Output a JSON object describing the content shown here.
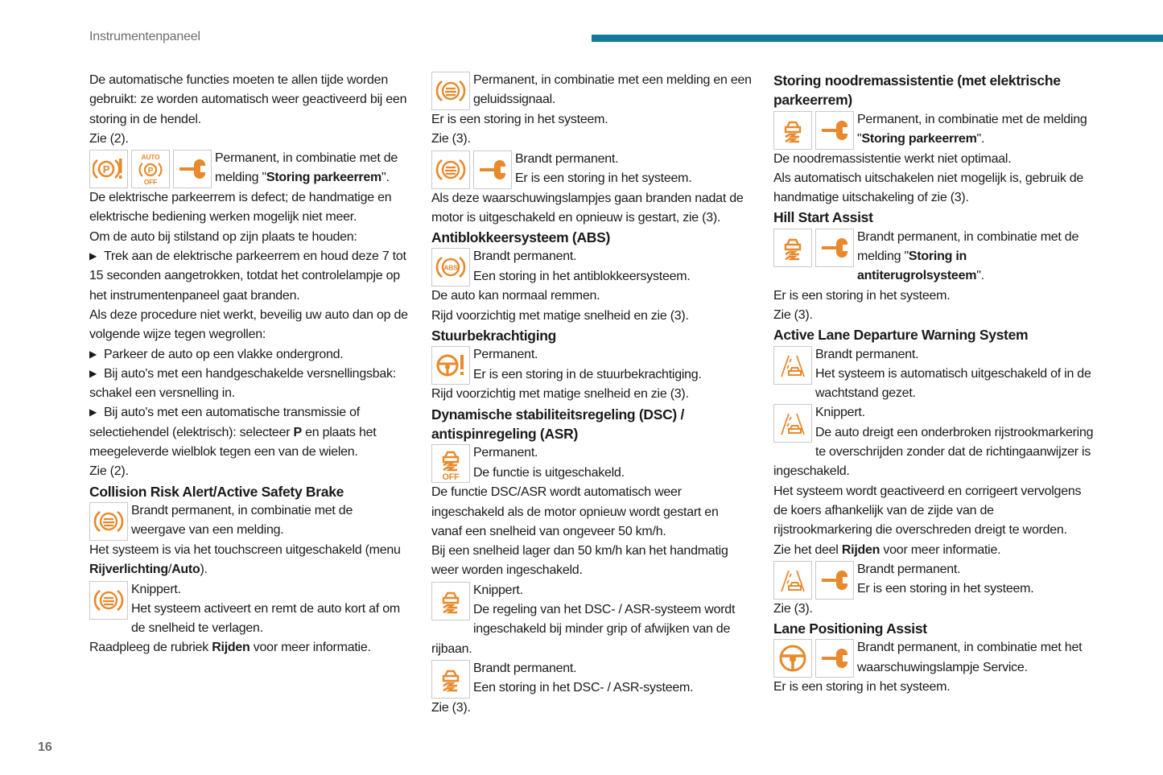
{
  "header": {
    "title": "Instrumentenpaneel",
    "accent_color": "#147a9c",
    "page_number": "16"
  },
  "icon_color": "#e8892b",
  "columns": [
    [
      {
        "type": "p",
        "runs": [
          "De automatische functies moeten te allen tijde worden gebruikt: ze worden automatisch weer geactiveerd bij een storing in de hendel."
        ]
      },
      {
        "type": "p",
        "runs": [
          "Zie (2)."
        ]
      },
      {
        "type": "icons",
        "icons": [
          "parking-brake-warning-icon",
          "auto-parking-off-icon",
          "wrench-icon"
        ],
        "lines": [
          [
            "Permanent, in combinatie met de melding \"",
            {
              "b": "Storing parkeerrem"
            },
            "\"."
          ]
        ]
      },
      {
        "type": "p",
        "runs": [
          "De elektrische parkeerrem is defect; de handmatige en elektrische bediening werken mogelijk niet meer."
        ]
      },
      {
        "type": "p",
        "runs": [
          "Om de auto bij stilstand op zijn plaats te houden:"
        ]
      },
      {
        "type": "bullet",
        "runs": [
          "Trek aan de elektrische parkeerrem en houd deze 7 tot 15 seconden aangetrokken, totdat het controlelampje op het instrumentenpaneel gaat branden."
        ]
      },
      {
        "type": "p",
        "runs": [
          "Als deze procedure niet werkt, beveilig uw auto dan op de volgende wijze tegen wegrollen:"
        ]
      },
      {
        "type": "bullet",
        "runs": [
          "Parkeer de auto op een vlakke ondergrond."
        ]
      },
      {
        "type": "bullet",
        "runs": [
          "Bij auto's met een handgeschakelde versnellingsbak: schakel een versnelling in."
        ]
      },
      {
        "type": "bullet",
        "runs": [
          "Bij auto's met een automatische transmissie of selectiehendel (elektrisch): selecteer ",
          {
            "b": "P"
          },
          " en plaats het meegeleverde wielblok tegen een van de wielen."
        ]
      },
      {
        "type": "p",
        "runs": [
          "Zie (2)."
        ]
      },
      {
        "type": "h",
        "runs": [
          "Collision Risk Alert/Active Safety Brake"
        ]
      },
      {
        "type": "icons",
        "icons": [
          "collision-alert-icon"
        ],
        "lines": [
          [
            "Brandt permanent, in combinatie met de weergave van een melding."
          ]
        ]
      },
      {
        "type": "p",
        "runs": [
          "Het systeem is via het touchscreen uitgeschakeld (menu ",
          {
            "b": "Rijverlichting"
          },
          "/",
          {
            "b": "Auto"
          },
          ")."
        ]
      },
      {
        "type": "icons",
        "icons": [
          "collision-alert-icon"
        ],
        "lines": [
          [
            "Knippert."
          ],
          [
            "Het systeem activeert en remt de auto kort af om de snelheid te verlagen."
          ]
        ]
      },
      {
        "type": "p",
        "runs": [
          "Raadpleeg de rubriek ",
          {
            "b": "Rijden"
          },
          " voor meer informatie."
        ]
      }
    ],
    [
      {
        "type": "icons",
        "icons": [
          "collision-alert-icon"
        ],
        "lines": [
          [
            "Permanent, in combinatie met een melding en een geluidssignaal."
          ]
        ]
      },
      {
        "type": "p",
        "runs": [
          "Er is een storing in het systeem."
        ]
      },
      {
        "type": "p",
        "runs": [
          "Zie (3)."
        ]
      },
      {
        "type": "icons",
        "icons": [
          "collision-alert-icon",
          "wrench-icon"
        ],
        "lines": [
          [
            "Brandt permanent."
          ],
          [
            "Er is een storing in het systeem."
          ]
        ]
      },
      {
        "type": "p",
        "runs": [
          "Als deze waarschuwingslampjes gaan branden nadat de motor is uitgeschakeld en opnieuw is gestart, zie (3)."
        ]
      },
      {
        "type": "h",
        "runs": [
          "Antiblokkeersysteem (ABS)"
        ]
      },
      {
        "type": "icons",
        "icons": [
          "abs-icon"
        ],
        "lines": [
          [
            "Brandt permanent."
          ],
          [
            "Een storing in het antiblokkeersysteem."
          ]
        ]
      },
      {
        "type": "p",
        "runs": [
          "De auto kan normaal remmen."
        ]
      },
      {
        "type": "p",
        "runs": [
          "Rijd voorzichtig met matige snelheid en zie (3)."
        ]
      },
      {
        "type": "h",
        "runs": [
          "Stuurbekrachtiging"
        ]
      },
      {
        "type": "icons",
        "icons": [
          "power-steering-icon"
        ],
        "lines": [
          [
            "Permanent."
          ],
          [
            "Er is een storing in de stuurbekrachtiging."
          ]
        ]
      },
      {
        "type": "p",
        "runs": [
          "Rijd voorzichtig met matige snelheid en zie (3)."
        ]
      },
      {
        "type": "h",
        "runs": [
          "Dynamische stabiliteitsregeling (DSC) / antispinregeling (ASR)"
        ]
      },
      {
        "type": "icons",
        "icons": [
          "dsc-off-icon"
        ],
        "lines": [
          [
            "Permanent."
          ],
          [
            "De functie is uitgeschakeld."
          ]
        ]
      },
      {
        "type": "p",
        "runs": [
          "De functie DSC/ASR wordt automatisch weer ingeschakeld als de motor opnieuw wordt gestart en vanaf een snelheid van ongeveer 50 km/h."
        ]
      },
      {
        "type": "p",
        "runs": [
          "Bij een snelheid lager dan 50 km/h kan het handmatig weer worden ingeschakeld."
        ]
      },
      {
        "type": "icons",
        "icons": [
          "dsc-icon"
        ],
        "lines": [
          [
            "Knippert."
          ],
          [
            "De regeling van het DSC- / ASR-systeem wordt ingeschakeld bij minder grip of afwijken van de rijbaan."
          ]
        ]
      },
      {
        "type": "icons",
        "icons": [
          "dsc-icon"
        ],
        "lines": [
          [
            "Brandt permanent."
          ],
          [
            "Een storing in het DSC- / ASR-systeem."
          ]
        ]
      },
      {
        "type": "p",
        "runs": [
          "Zie (3)."
        ]
      }
    ],
    [
      {
        "type": "h",
        "runs": [
          "Storing noodremassistentie (met elektrische parkeerrem)"
        ]
      },
      {
        "type": "icons",
        "icons": [
          "dsc-icon",
          "wrench-icon"
        ],
        "lines": [
          [
            "Permanent, in combinatie met de melding \"",
            {
              "b": "Storing parkeerrem"
            },
            "\"."
          ]
        ]
      },
      {
        "type": "p",
        "runs": [
          "De noodremassistentie werkt niet optimaal."
        ]
      },
      {
        "type": "p",
        "runs": [
          "Als automatisch uitschakelen niet mogelijk is, gebruik de handmatige uitschakeling of zie (3)."
        ]
      },
      {
        "type": "h",
        "runs": [
          "Hill Start Assist"
        ]
      },
      {
        "type": "icons",
        "icons": [
          "dsc-icon",
          "wrench-icon"
        ],
        "lines": [
          [
            "Brandt permanent, in combinatie met de melding \"",
            {
              "b": "Storing in antiterugrolsysteem"
            },
            "\"."
          ]
        ]
      },
      {
        "type": "p",
        "runs": [
          "Er is een storing in het systeem."
        ]
      },
      {
        "type": "p",
        "runs": [
          "Zie (3)."
        ]
      },
      {
        "type": "h",
        "runs": [
          "Active Lane Departure Warning System"
        ]
      },
      {
        "type": "icons",
        "icons": [
          "lane-departure-icon"
        ],
        "lines": [
          [
            "Brandt permanent."
          ],
          [
            "Het systeem is automatisch uitgeschakeld of in de wachtstand gezet."
          ]
        ]
      },
      {
        "type": "icons",
        "icons": [
          "lane-departure-icon"
        ],
        "lines": [
          [
            "Knippert."
          ],
          [
            "De auto dreigt een onderbroken rijstrookmarkering te overschrijden zonder dat de richtingaanwijzer is ingeschakeld."
          ]
        ]
      },
      {
        "type": "p",
        "runs": [
          "Het systeem wordt geactiveerd en corrigeert vervolgens de koers afhankelijk van de zijde van de rijstrookmarkering die overschreden dreigt te worden."
        ]
      },
      {
        "type": "p",
        "runs": [
          "Zie het deel ",
          {
            "b": "Rijden"
          },
          " voor meer informatie."
        ]
      },
      {
        "type": "icons",
        "icons": [
          "lane-departure-icon",
          "wrench-icon"
        ],
        "lines": [
          [
            "Brandt permanent."
          ],
          [
            "Er is een storing in het systeem."
          ]
        ]
      },
      {
        "type": "p",
        "runs": [
          "Zie (3)."
        ]
      },
      {
        "type": "h",
        "runs": [
          "Lane Positioning Assist"
        ]
      },
      {
        "type": "icons",
        "icons": [
          "lane-positioning-icon",
          "wrench-icon"
        ],
        "lines": [
          [
            "Brandt permanent, in combinatie met het waarschuwingslampje Service."
          ]
        ]
      },
      {
        "type": "p",
        "runs": [
          "Er is een storing in het systeem."
        ]
      }
    ]
  ]
}
